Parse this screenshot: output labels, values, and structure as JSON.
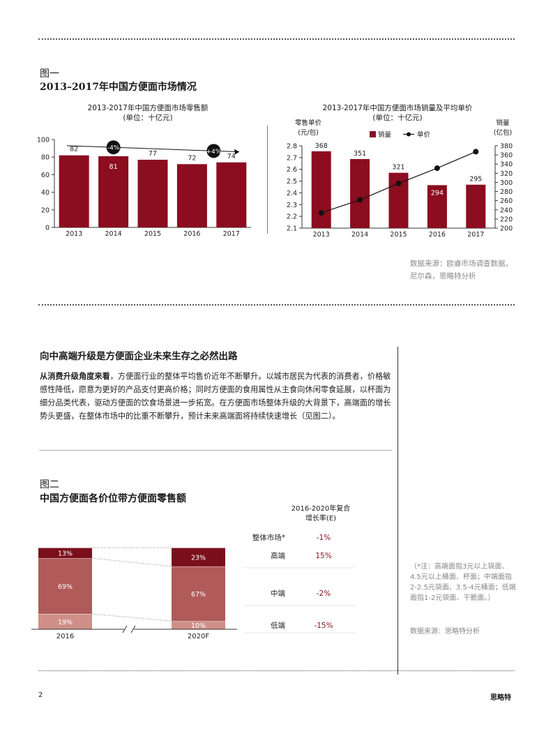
{
  "colors": {
    "bar": "#8b0d1f",
    "high": "#7a0f1c",
    "mid": "#b05a5a",
    "low": "#cf8f88",
    "green_text": "#8b0d1f"
  },
  "fig1": {
    "label": "图一",
    "title": "2013–2017年中国方便面市场情况",
    "source": "数据来源：欧睿市场调查数据，尼尔森，思略特分析"
  },
  "article": {
    "heading": "向中高端升级是方便面企业未来生存之必然出路",
    "lead": "从消费升级角度来看",
    "body": "，方便面行业的整体平均售价近年不断攀升。以城市居民为代表的消费者，价格敏感性降低，愿意为更好的产品支付更高价格；同时方便面的食用属性从主食向休闲零食延展，以杯面为细分品类代表，驱动方便面的饮食场景进一步拓宽。在方便面市场整体升级的大背景下，高端面的增长势头更盛，在整体市场中的比重不断攀升，预计未来高端面将持续快速增长（见图二）。"
  },
  "fig2": {
    "label": "图二",
    "title": "中国方便面各价位带方便面零售额",
    "cagr_header": "2016-2020年复合增长率(E)",
    "note": "（*注：高端面指3元以上袋面、4.5元以上桶面、杯面；中端面指2-2.5元袋面、3.5-4元桶面；低端面指1-2元袋面、干脆面。）",
    "source": "数据来源：思略特分析"
  },
  "footer": {
    "page": "2",
    "brand": "思略特"
  },
  "chart_data": [
    {
      "type": "bar",
      "title": "2013-2017年中国方便面市场零售额",
      "subtitle": "(单位：十亿元)",
      "categories": [
        "2013",
        "2014",
        "2015",
        "2016",
        "2017"
      ],
      "values": [
        82,
        81,
        77,
        72,
        74
      ],
      "ylim": [
        0,
        100
      ],
      "yticks": [
        "0",
        "20",
        "40",
        "60",
        "80",
        "100"
      ],
      "annotations": [
        "-4%",
        "+4%"
      ]
    },
    {
      "type": "bar",
      "title": "2013-2017年中国方便面市场销量及平均单价",
      "subtitle": "(单位：十亿元)",
      "categories": [
        "2013",
        "2014",
        "2015",
        "2016",
        "2017"
      ],
      "left_axis_label": [
        "零售单价",
        "(元/包)"
      ],
      "right_axis_label": [
        "销量",
        "(亿包)"
      ],
      "left_ylim": [
        2.1,
        2.8
      ],
      "left_ticks": [
        "2.1",
        "2.2",
        "2.3",
        "2.4",
        "2.5",
        "2.6",
        "2.7",
        "2.8"
      ],
      "right_ylim": [
        200,
        380
      ],
      "right_ticks": [
        "200",
        "220",
        "240",
        "260",
        "280",
        "300",
        "320",
        "340",
        "360",
        "380"
      ],
      "legend": [
        "销量",
        "单价"
      ],
      "series": [
        {
          "name": "销量",
          "type": "bar",
          "axis": "right",
          "values": [
            368,
            351,
            321,
            294,
            295
          ]
        },
        {
          "name": "单价",
          "type": "line",
          "axis": "left",
          "values": [
            2.23,
            2.34,
            2.48,
            2.61,
            2.75
          ]
        }
      ]
    },
    {
      "type": "bar",
      "stacked": true,
      "categories": [
        "2016",
        "2020F"
      ],
      "series": [
        {
          "name": "低端",
          "values": [
            19,
            10
          ],
          "labels": [
            "19%",
            "10%"
          ]
        },
        {
          "name": "中端",
          "values": [
            69,
            67
          ],
          "labels": [
            "69%",
            "67%"
          ]
        },
        {
          "name": "高端",
          "values": [
            13,
            23
          ],
          "labels": [
            "13%",
            "23%"
          ]
        }
      ],
      "table": [
        {
          "segment": "整体市场*",
          "cagr": "-1%"
        },
        {
          "segment": "高端",
          "cagr": "15%"
        },
        {
          "segment": "中端",
          "cagr": "-2%"
        },
        {
          "segment": "低端",
          "cagr": "-15%"
        }
      ]
    }
  ]
}
